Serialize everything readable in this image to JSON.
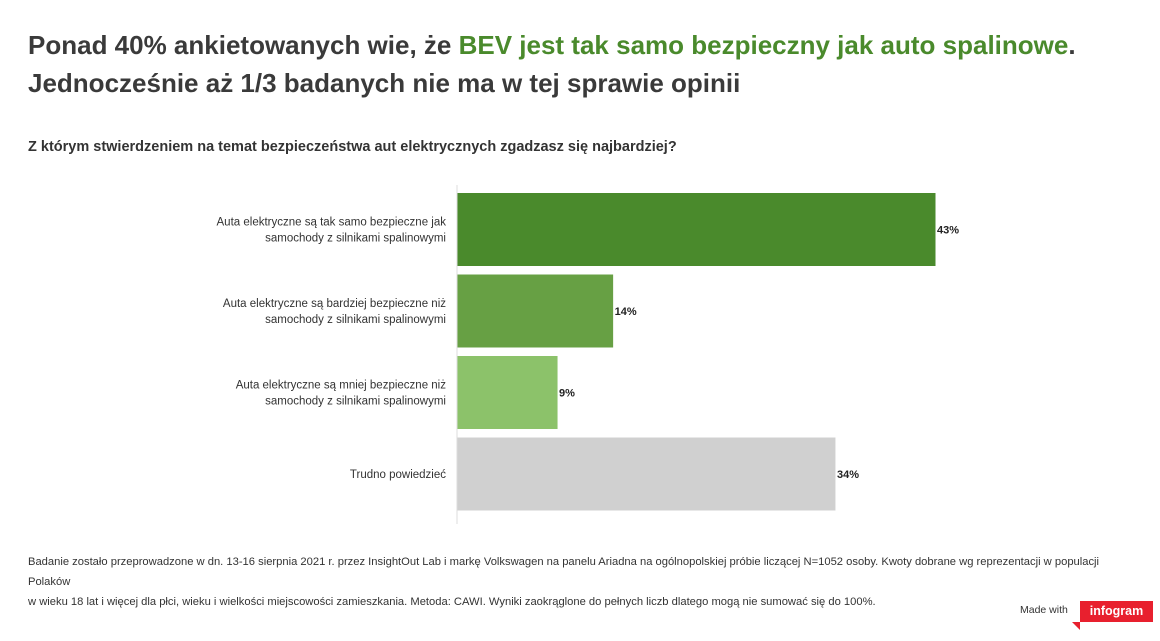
{
  "header": {
    "title_part1": "Ponad 40% ankietowanych wie, że ",
    "title_accent": "BEV jest tak samo bezpieczny jak auto spalinowe",
    "title_part2": ".",
    "title_line2": "Jednocześnie aż 1/3 badanych nie ma w tej sprawie opinii",
    "accent_color": "#4a8a2c"
  },
  "question": "Z którym stwierdzeniem na temat bezpieczeństwa aut elektrycznych zgadzasz się najbardziej?",
  "chart_data": {
    "type": "bar",
    "orientation": "horizontal",
    "categories": [
      [
        "Auta elektryczne są tak samo bezpieczne jak",
        "samochody z silnikami spalinowymi"
      ],
      [
        "Auta elektryczne są bardziej bezpieczne niż",
        "samochody z silnikami spalinowymi"
      ],
      [
        "Auta elektryczne są mniej bezpieczne niż",
        "samochody z silnikami spalinowymi"
      ],
      [
        "Trudno powiedzieć"
      ]
    ],
    "values": [
      43,
      14,
      9,
      34
    ],
    "value_labels": [
      "43%",
      "14%",
      "9%",
      "34%"
    ],
    "colors": [
      "#4a8a2c",
      "#67a044",
      "#8cc26a",
      "#d0d0d0"
    ],
    "xlim": [
      0,
      45
    ],
    "grid": false
  },
  "footnote": {
    "line1": "Badanie zostało przeprowadzone w dn. 13-16 sierpnia 2021 r. przez InsightOut Lab i markę Volkswagen na panelu Ariadna na ogólnopolskiej próbie liczącej N=1052 osoby. Kwoty dobrane wg reprezentacji w populacji Polaków",
    "line2": "w wieku 18 lat i więcej dla płci, wieku i wielkości miejscowości zamieszkania. Metoda: CAWI. Wyniki zaokrąglone do pełnych liczb dlatego mogą nie sumować się do 100%."
  },
  "branding": {
    "made_with": "Made with",
    "logo": "infogram",
    "logo_color": "#e8202e"
  }
}
